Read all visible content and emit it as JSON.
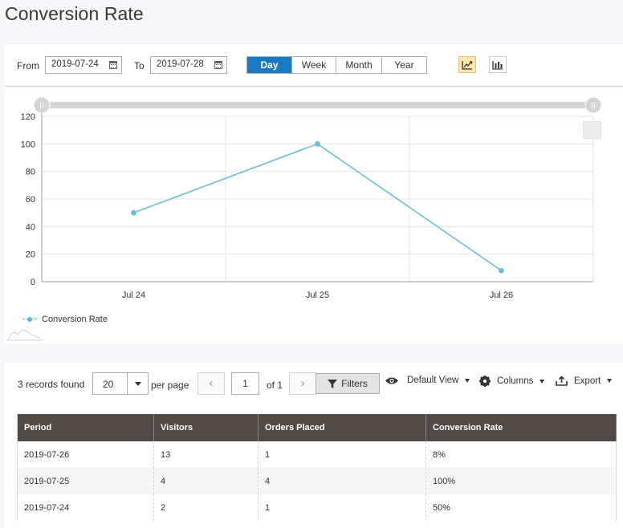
{
  "page": {
    "title": "Conversion Rate"
  },
  "filters": {
    "from_label": "From",
    "from_value": "2019-07-24",
    "to_label": "To",
    "to_value": "2019-07-28"
  },
  "period_tabs": [
    {
      "label": "Day",
      "active": true
    },
    {
      "label": "Week",
      "active": false
    },
    {
      "label": "Month",
      "active": false
    },
    {
      "label": "Year",
      "active": false
    }
  ],
  "view_toggles": [
    {
      "icon": "line-chart-icon",
      "active": true
    },
    {
      "icon": "bar-chart-icon",
      "active": false
    }
  ],
  "chart_data": {
    "type": "line",
    "categories": [
      "Jul 24",
      "Jul 25",
      "Jul 26"
    ],
    "series": [
      {
        "name": "Conversion Rate",
        "values": [
          50,
          100,
          8
        ],
        "color": "#6cbcd9"
      }
    ],
    "ylim": [
      0,
      120
    ],
    "yticks": [
      0,
      20,
      40,
      60,
      80,
      100,
      120
    ],
    "grid": true,
    "legend": "bottom-left"
  },
  "grid": {
    "records_found": "3 records found",
    "per_page_value": "20",
    "per_page_label": "per page",
    "prev_label": "‹",
    "next_label": "›",
    "page_current": "1",
    "page_of": "of 1",
    "filters_label": "Filters",
    "default_view_label": "Default View",
    "columns_label": "Columns",
    "export_label": "Export",
    "headers": [
      "Period",
      "Visitors",
      "Orders Placed",
      "Conversion Rate"
    ],
    "rows": [
      [
        "2019-07-26",
        "13",
        "1",
        "8%"
      ],
      [
        "2019-07-25",
        "4",
        "4",
        "100%"
      ],
      [
        "2019-07-24",
        "2",
        "1",
        "50%"
      ]
    ]
  }
}
